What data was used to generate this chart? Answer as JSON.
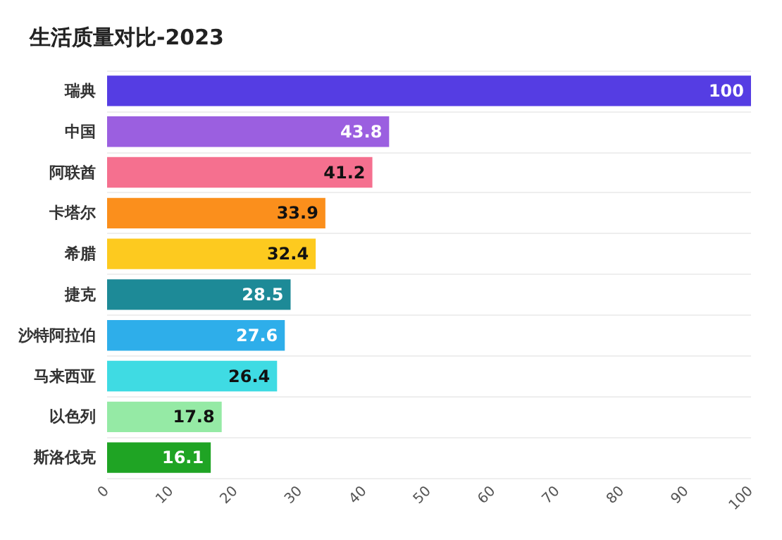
{
  "chart_data": {
    "type": "bar",
    "orientation": "horizontal",
    "title": "生活质量对比-2023",
    "categories": [
      "瑞典",
      "中国",
      "阿联酋",
      "卡塔尔",
      "希腊",
      "捷克",
      "沙特阿拉伯",
      "马来西亚",
      "以色列",
      "斯洛伐克"
    ],
    "values": [
      100,
      43.8,
      41.2,
      33.9,
      32.4,
      28.5,
      27.6,
      26.4,
      17.8,
      16.1
    ],
    "colors": [
      "#553de3",
      "#9b5fe0",
      "#f5708f",
      "#fb8f1c",
      "#fdca1f",
      "#1d8a97",
      "#2eaeea",
      "#3fdbe3",
      "#95eaa5",
      "#1fa424"
    ],
    "xlim": [
      0,
      100
    ],
    "xticks": [
      0,
      10,
      20,
      30,
      40,
      50,
      60,
      70,
      80,
      90,
      100
    ],
    "grid": "y",
    "data_labels": true
  }
}
